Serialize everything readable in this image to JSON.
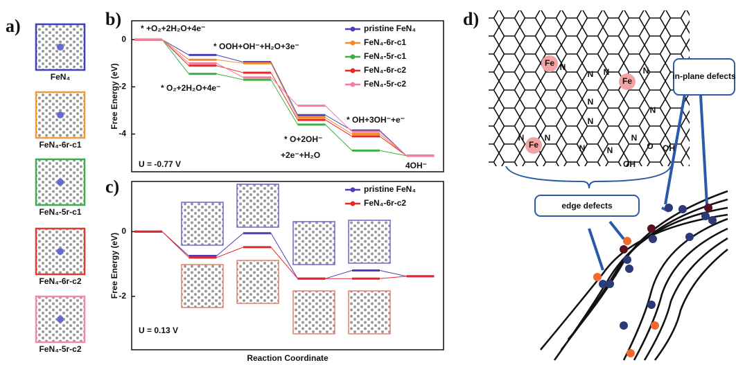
{
  "panels": [
    "a)",
    "b)",
    "c)",
    "d)"
  ],
  "structures": [
    {
      "label": "FeN₄",
      "color": "#4040b8"
    },
    {
      "label": "FeN₄-6r-c1",
      "color": "#f29a38"
    },
    {
      "label": "FeN₄-5r-c1",
      "color": "#3cae4a"
    },
    {
      "label": "FeN₄-6r-c2",
      "color": "#e23a36"
    },
    {
      "label": "FeN₄-5r-c2",
      "color": "#f08aa8"
    }
  ],
  "chart_data": [
    {
      "type": "level",
      "ylabel": "Free Energy (eV)",
      "ylim": [
        -5.6,
        0.8
      ],
      "yticks": [
        0,
        -2,
        -4
      ],
      "categories": [
        null,
        null,
        null,
        null,
        null,
        null
      ],
      "series": [
        {
          "name": "pristine FeN₄",
          "color": "#4a3fb8",
          "values": [
            0,
            -0.65,
            -0.95,
            -3.2,
            -3.85,
            -4.92
          ]
        },
        {
          "name": "FeN₄-6r-c1",
          "color": "#f28c28",
          "values": [
            0,
            -0.85,
            -1.0,
            -3.3,
            -4.0,
            -4.92
          ]
        },
        {
          "name": "FeN₄-5r-c1",
          "color": "#3cb043",
          "values": [
            0,
            -1.45,
            -1.7,
            -3.6,
            -4.7,
            -4.92
          ]
        },
        {
          "name": "FeN₄-6r-c2",
          "color": "#e8262a",
          "values": [
            0,
            -1.1,
            -1.4,
            -3.4,
            -4.1,
            -4.92
          ]
        },
        {
          "name": "FeN₄-5r-c2",
          "color": "#f47ea0",
          "values": [
            0,
            -1.0,
            -1.6,
            -2.8,
            -3.9,
            -4.92
          ]
        }
      ],
      "legend": "upper right",
      "annotations": [
        "* +O₂+2H₂O+4e⁻",
        "* O₂+2H₂O+4e⁻",
        "* OOH+OH⁻+H₂O+3e⁻",
        "* O+2OH⁻",
        "+2e⁻+H₂O",
        "* OH+3OH⁻+e⁻",
        "4OH⁻",
        "U = -0.77 V"
      ]
    },
    {
      "type": "level",
      "ylabel": "Free Energy (eV)",
      "xlabel": "Reaction Coordinate",
      "ylim": [
        -3.65,
        1.55
      ],
      "yticks": [
        0,
        -2
      ],
      "categories": [
        null,
        null,
        null,
        null,
        null,
        null
      ],
      "series": [
        {
          "name": "pristine FeN₄",
          "color": "#4a3fb8",
          "values": [
            0,
            -0.75,
            -0.05,
            -1.45,
            -1.2,
            -1.38
          ]
        },
        {
          "name": "FeN₄-6r-c2",
          "color": "#e8262a",
          "values": [
            0,
            -0.8,
            -0.48,
            -1.45,
            -1.45,
            -1.38
          ]
        }
      ],
      "legend": "upper right",
      "annotations": [
        "U = 0.13 V"
      ]
    }
  ],
  "schematic": {
    "atoms": [
      "Fe",
      "Fe",
      "Fe"
    ],
    "nitrogen": [
      "N",
      "N",
      "N",
      "N",
      "N",
      "N",
      "N",
      "N",
      "N",
      "N",
      "N",
      "N"
    ],
    "oxygen": [
      "O",
      "OH",
      "OH"
    ],
    "edge_label": "edge defects",
    "inplane_label": "in-plane defects"
  }
}
